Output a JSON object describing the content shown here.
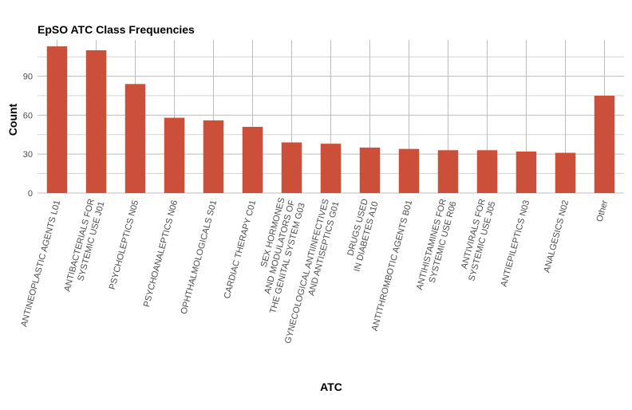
{
  "chart_data": {
    "type": "bar",
    "title": "EpSO ATC Class Frequencies",
    "xlabel": "ATC",
    "ylabel": "Count",
    "categories": [
      [
        "ANTINEOPLASTIC AGENTS L01"
      ],
      [
        "ANTIBACTERIALS FOR",
        "SYSTEMIC USE J01"
      ],
      [
        "PSYCHOLEPTICS N05"
      ],
      [
        "PSYCHOANALEPTICS N06"
      ],
      [
        "OPHTHALMOLOGICALS S01"
      ],
      [
        "CARDIAC THERAPY C01"
      ],
      [
        "SEX HORMONES",
        "AND MODULATORS OF",
        "THE GENITAL SYSTEM G03"
      ],
      [
        "GYNECOLOGICAL ANTIINFECTIVES",
        "AND ANTISEPTICS G01"
      ],
      [
        "DRUGS USED",
        "IN DIABETES A10"
      ],
      [
        "ANTITHROMBOTIC AGENTS B01"
      ],
      [
        "ANTIHISTAMINES FOR",
        "SYSTEMIC USE R06"
      ],
      [
        "ANTIVIRALS FOR",
        "SYSTEMIC USE J05"
      ],
      [
        "ANTIEPILEPTICS N03"
      ],
      [
        "ANALGESICS N02"
      ],
      [
        "Other"
      ]
    ],
    "values": [
      113,
      110,
      84,
      58,
      56,
      51,
      39,
      38,
      35,
      34,
      33,
      33,
      32,
      31,
      75
    ],
    "yticks": [
      0,
      30,
      60,
      90
    ],
    "ylim": [
      0,
      118
    ],
    "grid": true,
    "legend": "none",
    "bar_color": "#cc4f3a",
    "grid_color": "#bdbdbd",
    "tick_label_color": "#4d4d4d"
  }
}
